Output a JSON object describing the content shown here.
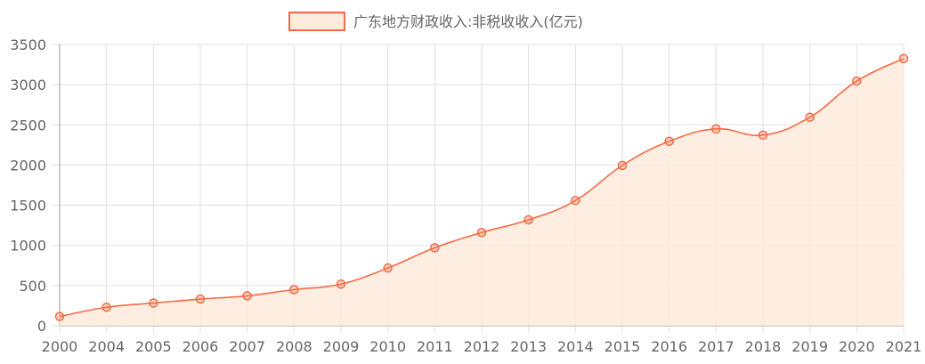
{
  "chart_data": {
    "type": "area",
    "legend": {
      "label": "广东地方财政收入:非税收收入(亿元)",
      "position": "top-center"
    },
    "x": [
      "2000",
      "2004",
      "2005",
      "2006",
      "2007",
      "2008",
      "2009",
      "2010",
      "2011",
      "2012",
      "2013",
      "2014",
      "2015",
      "2016",
      "2017",
      "2018",
      "2019",
      "2020",
      "2021"
    ],
    "series": [
      {
        "name": "广东地方财政收入:非税收收入(亿元)",
        "values": [
          115,
          230,
          282,
          332,
          372,
          450,
          518,
          718,
          970,
          1160,
          1318,
          1558,
          1995,
          2295,
          2450,
          2372,
          2595,
          3045,
          3325
        ]
      }
    ],
    "ylim": [
      0,
      3500
    ],
    "yticks": [
      0,
      500,
      1000,
      1500,
      2000,
      2500,
      3000,
      3500
    ],
    "grid": true,
    "colors": {
      "line": "#f46a45",
      "fill": "#fdebdc",
      "point": "#f46a45",
      "grid": "#e0e0e0",
      "axis": "#999999"
    }
  }
}
